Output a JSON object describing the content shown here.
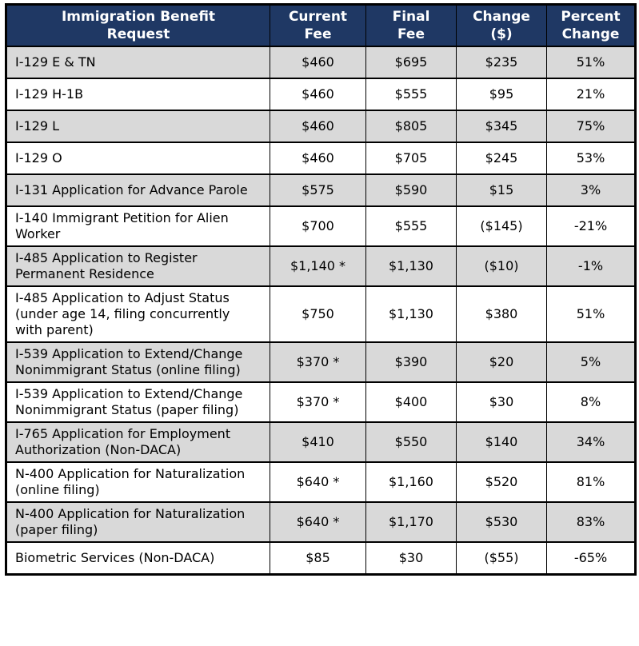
{
  "colors": {
    "header_bg": "#1F3864",
    "header_text": "#FFFFFF",
    "row_shaded": "#D9D9D9",
    "row_plain": "#FFFFFF",
    "border": "#000000"
  },
  "table": {
    "columns": [
      "Immigration Benefit\nRequest",
      "Current\nFee",
      "Final\nFee",
      "Change\n($)",
      "Percent\nChange"
    ],
    "rows": [
      {
        "request": "I-129 E & TN",
        "current_fee": "$460",
        "final_fee": "$695",
        "change_usd": "$235",
        "percent_change": "51%",
        "shaded": true
      },
      {
        "request": "I-129 H-1B",
        "current_fee": "$460",
        "final_fee": "$555",
        "change_usd": "$95",
        "percent_change": "21%",
        "shaded": false
      },
      {
        "request": "I-129 L",
        "current_fee": "$460",
        "final_fee": "$805",
        "change_usd": "$345",
        "percent_change": "75%",
        "shaded": true
      },
      {
        "request": "I-129 O",
        "current_fee": "$460",
        "final_fee": "$705",
        "change_usd": "$245",
        "percent_change": "53%",
        "shaded": false
      },
      {
        "request": "I-131 Application for Advance Parole",
        "current_fee": "$575",
        "final_fee": "$590",
        "change_usd": "$15",
        "percent_change": "3%",
        "shaded": true
      },
      {
        "request": "I-140 Immigrant Petition for Alien Worker",
        "current_fee": "$700",
        "final_fee": "$555",
        "change_usd": "($145)",
        "percent_change": "-21%",
        "shaded": false
      },
      {
        "request": "I-485 Application to Register Permanent Residence",
        "current_fee": "$1,140 *",
        "final_fee": "$1,130",
        "change_usd": "($10)",
        "percent_change": "-1%",
        "shaded": true
      },
      {
        "request": "I-485 Application to Adjust Status (under age 14, filing concurrently with parent)",
        "current_fee": "$750",
        "final_fee": "$1,130",
        "change_usd": "$380",
        "percent_change": "51%",
        "shaded": false
      },
      {
        "request": "I-539 Application to Extend/Change Nonimmigrant Status (online filing)",
        "current_fee": "$370 *",
        "final_fee": "$390",
        "change_usd": "$20",
        "percent_change": "5%",
        "shaded": true
      },
      {
        "request": "I-539 Application to Extend/Change Nonimmigrant Status (paper filing)",
        "current_fee": "$370 *",
        "final_fee": "$400",
        "change_usd": "$30",
        "percent_change": "8%",
        "shaded": false
      },
      {
        "request": "I-765 Application for Employment Authorization (Non-DACA)",
        "current_fee": "$410",
        "final_fee": "$550",
        "change_usd": "$140",
        "percent_change": "34%",
        "shaded": true
      },
      {
        "request": "N-400 Application for Naturalization (online filing)",
        "current_fee": "$640 *",
        "final_fee": "$1,160",
        "change_usd": "$520",
        "percent_change": "81%",
        "shaded": false
      },
      {
        "request": "N-400 Application for Naturalization (paper filing)",
        "current_fee": "$640 *",
        "final_fee": "$1,170",
        "change_usd": "$530",
        "percent_change": "83%",
        "shaded": true
      },
      {
        "request": "Biometric Services (Non-DACA)",
        "current_fee": "$85",
        "final_fee": "$30",
        "change_usd": "($55)",
        "percent_change": "-65%",
        "shaded": false
      }
    ]
  }
}
